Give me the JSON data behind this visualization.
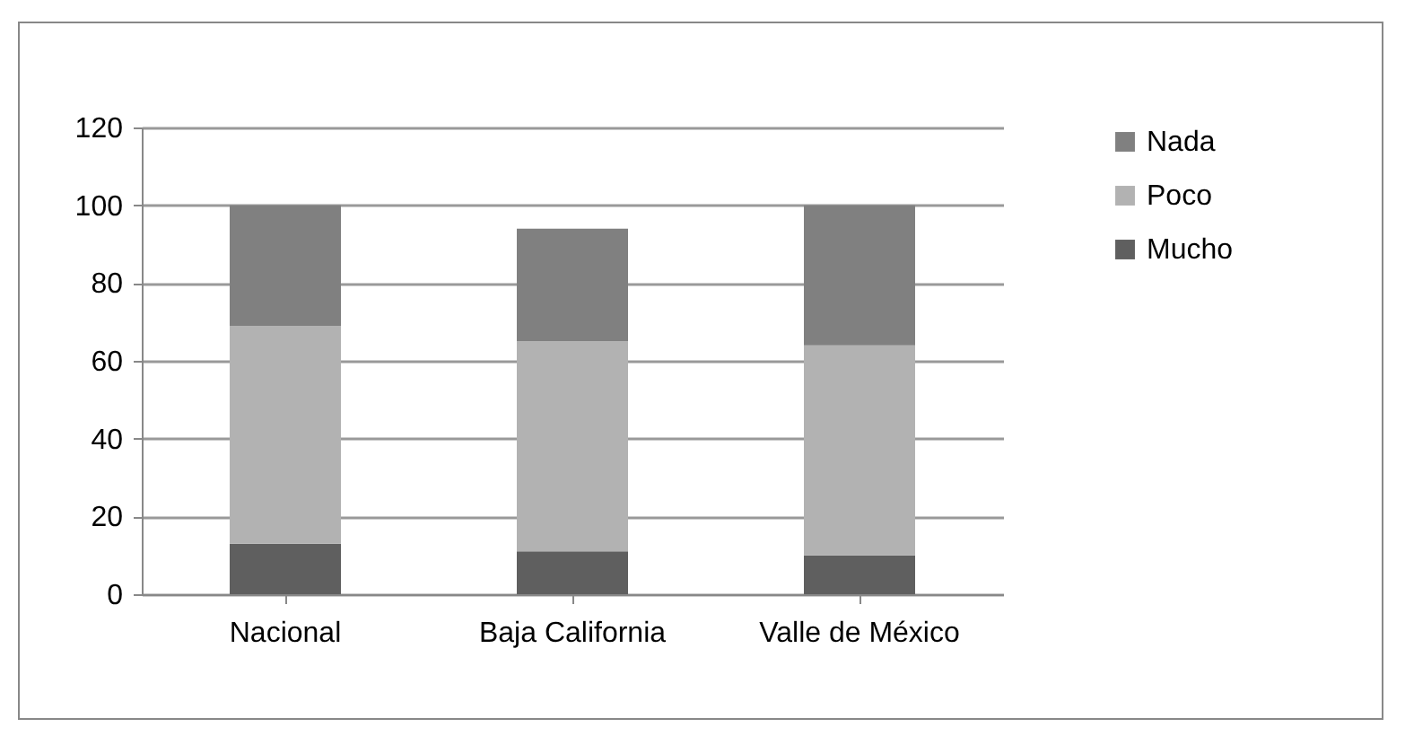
{
  "chart_data": {
    "type": "bar",
    "stacked": true,
    "categories": [
      "Nacional",
      "Baja California",
      "Valle de México"
    ],
    "series": [
      {
        "name": "Mucho",
        "color": "#5f5f5f",
        "values": [
          13,
          11,
          10
        ]
      },
      {
        "name": "Poco",
        "color": "#b2b2b2",
        "values": [
          56,
          54,
          54
        ]
      },
      {
        "name": "Nada",
        "color": "#808080",
        "values": [
          31,
          29,
          36
        ]
      }
    ],
    "ylim": [
      0,
      120
    ],
    "yticks": [
      0,
      20,
      40,
      60,
      80,
      100,
      120
    ],
    "grid": "y",
    "legend": "right"
  }
}
